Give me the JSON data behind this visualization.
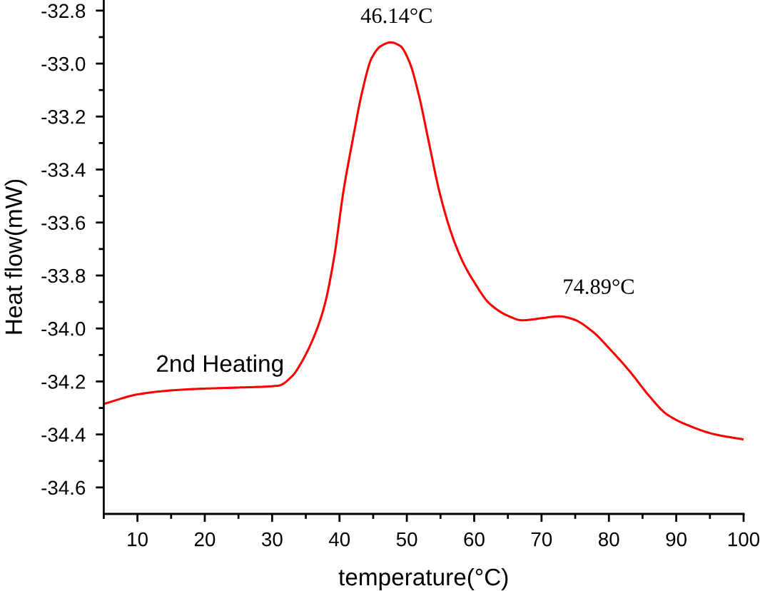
{
  "chart_data": {
    "type": "line",
    "xlabel": "temperature(°C)",
    "ylabel": "Heat flow(mW)",
    "annotations": [
      "46.14°C",
      "74.89°C"
    ],
    "series": [
      {
        "name": "2nd Heating",
        "color": "#ff0000",
        "x": [
          5.0,
          10.0,
          14.9,
          19.9,
          24.9,
          30.9,
          33.0,
          34.4,
          36.4,
          37.8,
          39.2,
          40.6,
          42.0,
          43.4,
          44.8,
          46.2,
          47.6,
          49.0,
          50.4,
          51.8,
          53.3,
          54.8,
          56.6,
          58.3,
          60.1,
          62.2,
          65.0,
          67.1,
          69.8,
          72.6,
          74.7,
          77.5,
          80.3,
          83.1,
          85.9,
          88.6,
          92.1,
          95.6,
          100.0
        ],
        "values": [
          -34.285,
          -34.249,
          -34.234,
          -34.227,
          -34.223,
          -34.216,
          -34.179,
          -34.126,
          -34.019,
          -33.911,
          -33.732,
          -33.48,
          -33.283,
          -33.103,
          -32.978,
          -32.933,
          -32.92,
          -32.933,
          -32.995,
          -33.121,
          -33.301,
          -33.48,
          -33.64,
          -33.748,
          -33.829,
          -33.904,
          -33.952,
          -33.969,
          -33.962,
          -33.954,
          -33.965,
          -34.01,
          -34.082,
          -34.162,
          -34.252,
          -34.324,
          -34.369,
          -34.399,
          -34.419
        ]
      }
    ],
    "xlim": [
      5,
      100
    ],
    "ylim": [
      -34.7,
      -32.76
    ],
    "xticks": [
      {
        "value": 5,
        "label": null
      },
      10,
      {
        "value": 15,
        "label": null
      },
      20,
      {
        "value": 25,
        "label": null
      },
      30,
      {
        "value": 35,
        "label": null
      },
      40,
      {
        "value": 45,
        "label": null
      },
      50,
      {
        "value": 55,
        "label": null
      },
      60,
      {
        "value": 65,
        "label": null
      },
      70,
      {
        "value": 75,
        "label": null
      },
      80,
      {
        "value": 85,
        "label": null
      },
      90,
      {
        "value": 95,
        "label": null
      },
      100
    ],
    "yticks": [
      -34.6,
      {
        "value": -34.5,
        "label": null
      },
      -34.4,
      {
        "value": -34.3,
        "label": null
      },
      -34.2,
      {
        "value": -34.1,
        "label": null
      },
      {
        "value": -34.0,
        "label": "-34.0"
      },
      {
        "value": -33.9,
        "label": null
      },
      -33.8,
      {
        "value": -33.7,
        "label": null
      },
      -33.6,
      {
        "value": -33.5,
        "label": null
      },
      -33.4,
      {
        "value": -33.3,
        "label": null
      },
      -33.2,
      {
        "value": -33.1,
        "label": null
      },
      {
        "value": -33.0,
        "label": "-33.0"
      },
      {
        "value": -32.9,
        "label": null
      },
      -32.8
    ],
    "marker": "none",
    "line_style": "solid"
  }
}
